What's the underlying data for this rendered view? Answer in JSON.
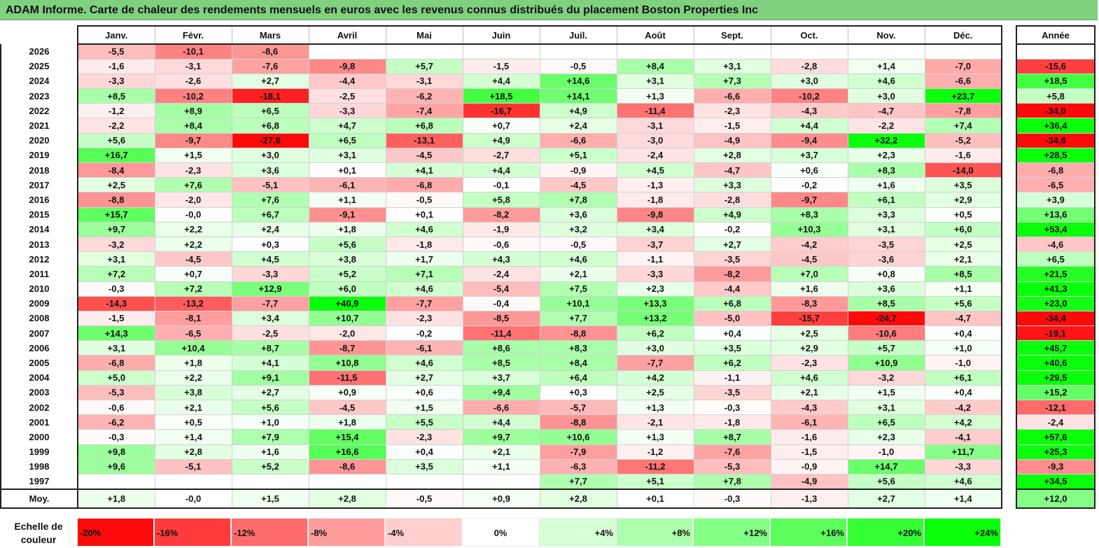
{
  "title": "ADAM Informe. Carte de chaleur des rendements mensuels en euros avec les revenus connus distribués du placement Boston Properties Inc",
  "chart_data": {
    "type": "heatmap",
    "title": "ADAM Informe. Carte de chaleur des rendements mensuels en euros avec les revenus connus distribués du placement Boston Properties Inc",
    "months": [
      "Janv.",
      "Févr.",
      "Mars",
      "Avril",
      "Mai",
      "Juin",
      "Juil.",
      "Août",
      "Sept.",
      "Oct.",
      "Nov.",
      "Déc."
    ],
    "year_header": "Année",
    "rows": [
      {
        "year": "2026",
        "values": [
          "-5,5",
          "-10,1",
          "-8,6",
          "",
          "",
          "",
          "",
          "",
          "",
          "",
          "",
          ""
        ],
        "total": ""
      },
      {
        "year": "2025",
        "values": [
          "-1,6",
          "-3,1",
          "-7,6",
          "-9,8",
          "+5,7",
          "-1,5",
          "-0,5",
          "+8,4",
          "+3,1",
          "-2,8",
          "+1,4",
          "-7,0"
        ],
        "total": "-15,6"
      },
      {
        "year": "2024",
        "values": [
          "-3,3",
          "-2,6",
          "+2,7",
          "-4,4",
          "-3,1",
          "+4,4",
          "+14,6",
          "+3,1",
          "+7,3",
          "+3,0",
          "+4,6",
          "-6,6"
        ],
        "total": "+18,5"
      },
      {
        "year": "2023",
        "values": [
          "+8,5",
          "-10,2",
          "-18,1",
          "-2,5",
          "-6,2",
          "+18,5",
          "+14,1",
          "+1,3",
          "-6,6",
          "-10,2",
          "+3,0",
          "+23,7"
        ],
        "total": "+5,8"
      },
      {
        "year": "2022",
        "values": [
          "-1,2",
          "+8,9",
          "+6,5",
          "-3,3",
          "-7,4",
          "-16,7",
          "+4,9",
          "-11,4",
          "-2,3",
          "-4,3",
          "-4,7",
          "-7,8"
        ],
        "total": "-34,0"
      },
      {
        "year": "2021",
        "values": [
          "-2,2",
          "+8,4",
          "+6,8",
          "+4,7",
          "+6,8",
          "+0,7",
          "+2,4",
          "-3,1",
          "-1,5",
          "+4,4",
          "-2,2",
          "+7,4"
        ],
        "total": "+36,4"
      },
      {
        "year": "2020",
        "values": [
          "+5,6",
          "-9,7",
          "-27,8",
          "+6,5",
          "-13,1",
          "+4,9",
          "-6,6",
          "-3,0",
          "-4,9",
          "-9,4",
          "+32,2",
          "-5,2"
        ],
        "total": "-34,6"
      },
      {
        "year": "2019",
        "values": [
          "+16,7",
          "+1,5",
          "+3,0",
          "+3,1",
          "-4,5",
          "-2,7",
          "+5,1",
          "-2,4",
          "+2,8",
          "+3,7",
          "+2,3",
          "-1,6"
        ],
        "total": "+28,5"
      },
      {
        "year": "2018",
        "values": [
          "-8,4",
          "-2,3",
          "+3,6",
          "+0,1",
          "+4,1",
          "+4,4",
          "-0,9",
          "+4,5",
          "-4,7",
          "+0,6",
          "+8,3",
          "-14,0"
        ],
        "total": "-6,8"
      },
      {
        "year": "2017",
        "values": [
          "+2,5",
          "+7,6",
          "-5,1",
          "-6,1",
          "-6,8",
          "-0,1",
          "-4,5",
          "-1,3",
          "+3,3",
          "-0,2",
          "+1,6",
          "+3,5"
        ],
        "total": "-6,5"
      },
      {
        "year": "2016",
        "values": [
          "-8,8",
          "-2,0",
          "+7,6",
          "+1,1",
          "-0,5",
          "+5,8",
          "+7,8",
          "-1,8",
          "-2,8",
          "-9,7",
          "+6,1",
          "+2,9"
        ],
        "total": "+3,9"
      },
      {
        "year": "2015",
        "values": [
          "+15,7",
          "-0,0",
          "+6,7",
          "-9,1",
          "+0,1",
          "-8,2",
          "+3,6",
          "-9,8",
          "+4,9",
          "+8,3",
          "+3,3",
          "+0,5"
        ],
        "total": "+13,6"
      },
      {
        "year": "2014",
        "values": [
          "+9,7",
          "+2,2",
          "+2,4",
          "+1,8",
          "+4,6",
          "-1,9",
          "+3,2",
          "+3,4",
          "-0,2",
          "+10,3",
          "+3,1",
          "+6,0"
        ],
        "total": "+53,4"
      },
      {
        "year": "2013",
        "values": [
          "-3,2",
          "+2,2",
          "+0,3",
          "+5,6",
          "-1,8",
          "-0,6",
          "-0,5",
          "-3,7",
          "+2,7",
          "-4,2",
          "-3,5",
          "+2,5"
        ],
        "total": "-4,6"
      },
      {
        "year": "2012",
        "values": [
          "+3,1",
          "-4,5",
          "+4,5",
          "+3,8",
          "+1,7",
          "+4,3",
          "+4,6",
          "-1,1",
          "-3,5",
          "-4,5",
          "-3,6",
          "+2,1"
        ],
        "total": "+6,5"
      },
      {
        "year": "2011",
        "values": [
          "+7,2",
          "+0,7",
          "-3,3",
          "+5,2",
          "+7,1",
          "-2,4",
          "+2,1",
          "-3,3",
          "-8,2",
          "+7,0",
          "+0,8",
          "+8,5"
        ],
        "total": "+21,5"
      },
      {
        "year": "2010",
        "values": [
          "-0,3",
          "+7,2",
          "+12,9",
          "+6,0",
          "+4,6",
          "-5,4",
          "+7,5",
          "+2,3",
          "-4,4",
          "+1,6",
          "+3,6",
          "+1,1"
        ],
        "total": "+41,3"
      },
      {
        "year": "2009",
        "values": [
          "-14,3",
          "-13,2",
          "-7,7",
          "+40,9",
          "-7,7",
          "-0,4",
          "+10,1",
          "+13,3",
          "+6,8",
          "-8,3",
          "+8,5",
          "+5,6"
        ],
        "total": "+23,0"
      },
      {
        "year": "2008",
        "values": [
          "-1,5",
          "-8,1",
          "+3,4",
          "+10,7",
          "-2,3",
          "-8,5",
          "+7,7",
          "+13,2",
          "-5,0",
          "-15,7",
          "-24,7",
          "-4,7"
        ],
        "total": "-34,4"
      },
      {
        "year": "2007",
        "values": [
          "+14,3",
          "-6,5",
          "-2,5",
          "-2,0",
          "-0,2",
          "-11,4",
          "-8,8",
          "+6,2",
          "+0,4",
          "+2,5",
          "-10,6",
          "+0,4"
        ],
        "total": "-19,1"
      },
      {
        "year": "2006",
        "values": [
          "+3,1",
          "+10,4",
          "+8,7",
          "-8,7",
          "-6,1",
          "+8,6",
          "+8,3",
          "+3,0",
          "+3,5",
          "+2,9",
          "+5,7",
          "+1,0"
        ],
        "total": "+45,7"
      },
      {
        "year": "2005",
        "values": [
          "-6,8",
          "+1,8",
          "+4,1",
          "+10,8",
          "+4,6",
          "+8,5",
          "+8,4",
          "-7,7",
          "+6,2",
          "-2,3",
          "+10,9",
          "-1,0"
        ],
        "total": "+40,6"
      },
      {
        "year": "2004",
        "values": [
          "+5,0",
          "+2,2",
          "+9,1",
          "-11,5",
          "+2,7",
          "+3,7",
          "+6,4",
          "+4,2",
          "-1,1",
          "+4,6",
          "-3,2",
          "+6,1"
        ],
        "total": "+29,5"
      },
      {
        "year": "2003",
        "values": [
          "-5,3",
          "+3,8",
          "+2,7",
          "+0,9",
          "+0,6",
          "+9,4",
          "+0,3",
          "+2,5",
          "-3,5",
          "+2,1",
          "+1,5",
          "+0,4"
        ],
        "total": "+15,2"
      },
      {
        "year": "2002",
        "values": [
          "-0,6",
          "+2,1",
          "+5,6",
          "-4,5",
          "+1,5",
          "-6,6",
          "-5,7",
          "+1,3",
          "-0,3",
          "-4,3",
          "+3,1",
          "-4,2"
        ],
        "total": "-12,1"
      },
      {
        "year": "2001",
        "values": [
          "-6,2",
          "+0,5",
          "+1,0",
          "+1,8",
          "+5,5",
          "+4,4",
          "-8,8",
          "-2,1",
          "-1,8",
          "-6,1",
          "+6,5",
          "+4,2"
        ],
        "total": "-2,4"
      },
      {
        "year": "2000",
        "values": [
          "-0,3",
          "+1,4",
          "+7,9",
          "+15,4",
          "-2,3",
          "+9,7",
          "+10,6",
          "+1,3",
          "+8,7",
          "-1,6",
          "+2,3",
          "-4,1"
        ],
        "total": "+57,6"
      },
      {
        "year": "1999",
        "values": [
          "+9,8",
          "+2,8",
          "+1,6",
          "+16,6",
          "+0,4",
          "+2,1",
          "-7,9",
          "-1,2",
          "-7,6",
          "-1,5",
          "-1,0",
          "+11,7"
        ],
        "total": "+25,3"
      },
      {
        "year": "1998",
        "values": [
          "+9,6",
          "-5,1",
          "+5,2",
          "-8,6",
          "+3,5",
          "+1,1",
          "-6,3",
          "-11,2",
          "-5,3",
          "-0,9",
          "+14,7",
          "-3,3"
        ],
        "total": "-9,3"
      },
      {
        "year": "1997",
        "values": [
          "",
          "",
          "",
          "",
          "",
          "",
          "+7,7",
          "+5,1",
          "+7,8",
          "-4,9",
          "+5,6",
          "+4,6"
        ],
        "total": "+34,5"
      }
    ],
    "average": {
      "label": "Moy.",
      "values": [
        "+1,8",
        "-0,0",
        "+1,5",
        "+2,8",
        "-0,5",
        "+0,9",
        "+2,8",
        "+0,1",
        "-0,3",
        "-1,3",
        "+2,7",
        "+1,4"
      ],
      "total": "+12,0"
    },
    "color_scale": {
      "label_line1": "Echelle de",
      "label_line2": "couleur",
      "steps": [
        {
          "label": "-20%",
          "value": -20
        },
        {
          "label": "-16%",
          "value": -16
        },
        {
          "label": "-12%",
          "value": -12
        },
        {
          "label": "-8%",
          "value": -8
        },
        {
          "label": "-4%",
          "value": -4
        },
        {
          "label": "0%",
          "value": 0
        },
        {
          "label": "+4%",
          "value": 4
        },
        {
          "label": "+8%",
          "value": 8
        },
        {
          "label": "+12%",
          "value": 12
        },
        {
          "label": "+16%",
          "value": 16
        },
        {
          "label": "+20%",
          "value": 20
        },
        {
          "label": "+24%",
          "value": 24
        }
      ]
    }
  }
}
